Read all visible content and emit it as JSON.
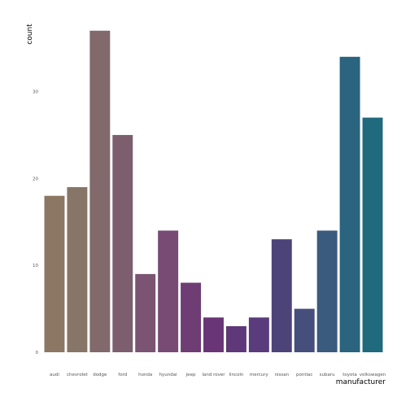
{
  "chart_data": {
    "type": "bar",
    "title": "",
    "xlabel": "manufacturer",
    "ylabel": "count",
    "categories": [
      "audi",
      "chevrolet",
      "dodge",
      "ford",
      "honda",
      "hyundai",
      "jeep",
      "land rover",
      "lincoln",
      "mercury",
      "nissan",
      "pontiac",
      "subaru",
      "toyota",
      "volkswagen"
    ],
    "values": [
      18,
      19,
      37,
      25,
      9,
      14,
      8,
      4,
      3,
      4,
      13,
      5,
      14,
      34,
      27
    ],
    "colors": [
      "#8b7763",
      "#877568",
      "#82696b",
      "#7c5e6e",
      "#7a5472",
      "#774b74",
      "#6e3d74",
      "#6a3576",
      "#5e3878",
      "#5a3c7c",
      "#4c4479",
      "#464f7c",
      "#3a5a7e",
      "#2a647e",
      "#1f6a7c"
    ],
    "ylim": [
      0,
      38.85
    ],
    "yticks": [
      0,
      10,
      20,
      30
    ],
    "grid": false,
    "legend": "none"
  }
}
